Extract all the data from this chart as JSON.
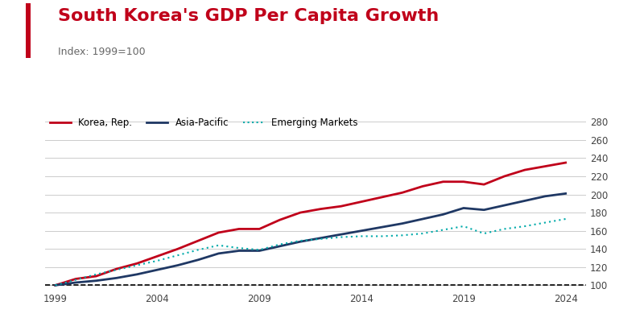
{
  "title": "South Korea's GDP Per Capita Growth",
  "subtitle": "Index: 1999=100",
  "title_color": "#C0001A",
  "subtitle_color": "#666666",
  "title_fontsize": 16,
  "subtitle_fontsize": 9,
  "accent_bar_color": "#C0001A",
  "background_color": "#ffffff",
  "grid_color": "#cccccc",
  "ylim": [
    95,
    290
  ],
  "yticks": [
    100,
    120,
    140,
    160,
    180,
    200,
    220,
    240,
    260,
    280
  ],
  "xticks": [
    1999,
    2004,
    2009,
    2014,
    2019,
    2024
  ],
  "years": [
    1999,
    2000,
    2001,
    2002,
    2003,
    2004,
    2005,
    2006,
    2007,
    2008,
    2009,
    2010,
    2011,
    2012,
    2013,
    2014,
    2015,
    2016,
    2017,
    2018,
    2019,
    2020,
    2021,
    2022,
    2023,
    2024
  ],
  "korea": [
    100,
    107,
    110,
    118,
    124,
    132,
    140,
    149,
    158,
    162,
    162,
    172,
    180,
    184,
    187,
    192,
    197,
    202,
    209,
    214,
    214,
    211,
    220,
    227,
    231,
    235
  ],
  "asia_pacific": [
    100,
    103,
    105,
    108,
    112,
    117,
    122,
    128,
    135,
    138,
    138,
    143,
    148,
    152,
    156,
    160,
    164,
    168,
    173,
    178,
    185,
    183,
    188,
    193,
    198,
    201
  ],
  "emerging_markets": [
    100,
    106,
    112,
    117,
    122,
    127,
    133,
    139,
    144,
    141,
    139,
    145,
    149,
    151,
    153,
    154,
    154,
    155,
    157,
    161,
    165,
    157,
    162,
    165,
    169,
    173
  ],
  "korea_color": "#C0001A",
  "asia_color": "#1F3864",
  "emerging_color": "#00AAAA",
  "korea_label": "Korea, Rep.",
  "asia_label": "Asia-Pacific",
  "emerging_label": "Emerging Markets"
}
